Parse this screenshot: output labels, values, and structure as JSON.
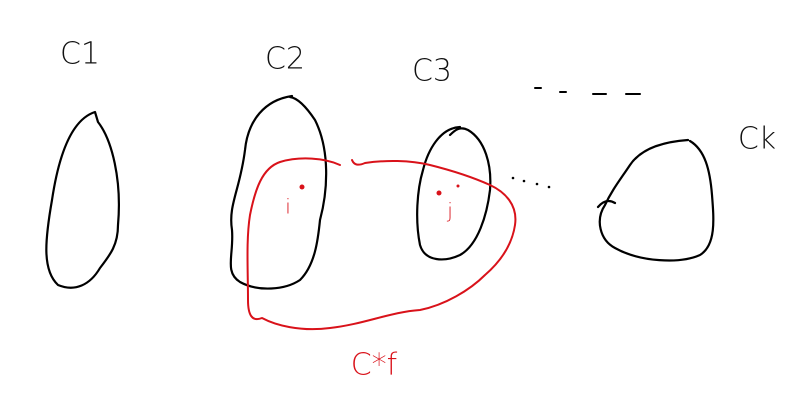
{
  "clusters": [
    {
      "label": "C1"
    },
    {
      "label": "C2"
    },
    {
      "label": "C3"
    },
    {
      "label": "Ck"
    }
  ],
  "points": [
    {
      "label": "i"
    },
    {
      "label": "j"
    }
  ],
  "optimal_cluster": {
    "label": "C*f"
  }
}
